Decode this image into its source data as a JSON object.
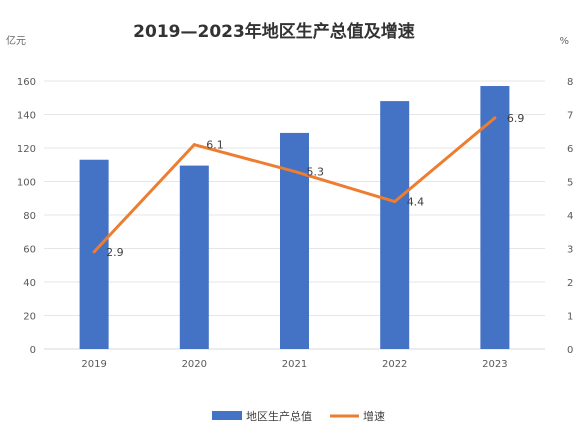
{
  "chart_data": {
    "type": "bar+line",
    "title": "2019—2023年地区生产总值及增速",
    "left_unit": "亿元",
    "right_unit": "%",
    "categories": [
      "2019",
      "2020",
      "2021",
      "2022",
      "2023"
    ],
    "series": [
      {
        "name": "地区生产总值",
        "type": "bar",
        "axis": "left",
        "color": "#4472c4",
        "values": [
          113,
          109.5,
          129,
          148,
          157
        ]
      },
      {
        "name": "增速",
        "type": "line",
        "axis": "right",
        "color": "#ed7d31",
        "values": [
          2.9,
          6.1,
          5.3,
          4.4,
          6.9
        ],
        "labels": [
          "2.9",
          "6.1",
          "5.3",
          "4.4",
          "6.9"
        ]
      }
    ],
    "y_left": {
      "min": 0,
      "max": 160,
      "ticks": [
        "0",
        "20",
        "40",
        "60",
        "80",
        "100",
        "120",
        "140",
        "160"
      ]
    },
    "y_right": {
      "min": 0,
      "max": 8,
      "ticks": [
        "0",
        "1",
        "2",
        "3",
        "4",
        "5",
        "6",
        "7",
        "8"
      ]
    },
    "grid": true,
    "legend_position": "bottom"
  }
}
